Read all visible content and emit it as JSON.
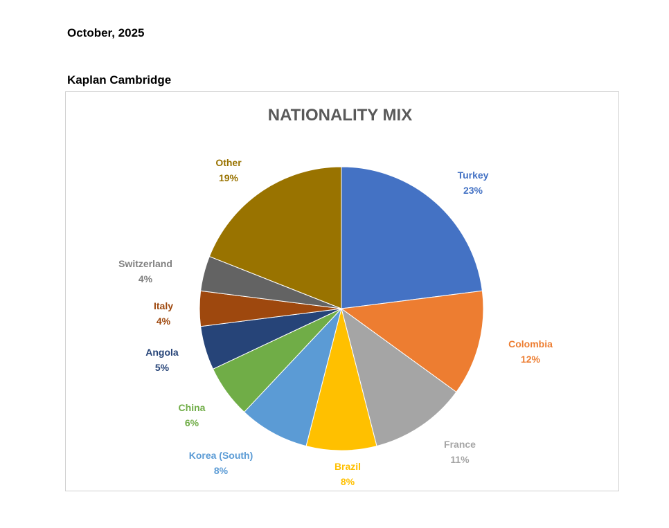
{
  "document": {
    "date": "October, 2025",
    "organization": "Kaplan Cambridge"
  },
  "chart_data": {
    "type": "pie",
    "title": "NATIONALITY MIX",
    "data_labels": "category and percentage",
    "slices": [
      {
        "label": "Turkey",
        "value": 23,
        "display": "23%",
        "color": "#4472C4"
      },
      {
        "label": "Colombia",
        "value": 12,
        "display": "12%",
        "color": "#ED7D31"
      },
      {
        "label": "France",
        "value": 11,
        "display": "11%",
        "color": "#A5A5A5"
      },
      {
        "label": "Brazil",
        "value": 8,
        "display": "8%",
        "color": "#FFC000"
      },
      {
        "label": "Korea (South)",
        "value": 8,
        "display": "8%",
        "color": "#5B9BD5"
      },
      {
        "label": "China",
        "value": 6,
        "display": "6%",
        "color": "#70AD47"
      },
      {
        "label": "Angola",
        "value": 5,
        "display": "5%",
        "color": "#264478"
      },
      {
        "label": "Italy",
        "value": 4,
        "display": "4%",
        "color": "#9E480E"
      },
      {
        "label": "Switzerland",
        "value": 4,
        "display": "4%",
        "color": "#636363"
      },
      {
        "label": "Other",
        "value": 19,
        "display": "19%",
        "color": "#997300"
      }
    ]
  }
}
